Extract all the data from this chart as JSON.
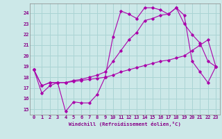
{
  "xlabel": "Windchill (Refroidissement éolien,°C)",
  "background_color": "#cce8e8",
  "grid_color": "#aad4d4",
  "line_color": "#aa00aa",
  "x_ticks": [
    0,
    1,
    2,
    3,
    4,
    5,
    6,
    7,
    8,
    9,
    10,
    11,
    12,
    13,
    14,
    15,
    16,
    17,
    18,
    19,
    20,
    21,
    22,
    23
  ],
  "y_ticks": [
    15,
    16,
    17,
    18,
    19,
    20,
    21,
    22,
    23,
    24
  ],
  "ylim": [
    14.5,
    24.9
  ],
  "xlim": [
    -0.5,
    23.5
  ],
  "line1": [
    18.7,
    16.5,
    17.2,
    17.5,
    14.8,
    15.7,
    15.6,
    15.6,
    16.4,
    18.0,
    21.8,
    24.2,
    23.9,
    23.5,
    24.5,
    24.5,
    24.3,
    23.9,
    24.5,
    23.0,
    22.0,
    21.2,
    19.5,
    19.0
  ],
  "line2": [
    18.7,
    17.2,
    17.5,
    17.5,
    17.5,
    17.6,
    17.7,
    17.8,
    17.9,
    18.0,
    18.2,
    18.5,
    18.7,
    18.9,
    19.1,
    19.3,
    19.5,
    19.6,
    19.8,
    20.0,
    20.5,
    21.0,
    21.5,
    19.0
  ],
  "line3": [
    18.7,
    17.2,
    17.5,
    17.5,
    17.5,
    17.7,
    17.8,
    18.0,
    18.2,
    18.5,
    19.5,
    20.5,
    21.5,
    22.2,
    23.3,
    23.5,
    23.8,
    23.9,
    24.5,
    23.8,
    19.5,
    18.5,
    17.5,
    19.0
  ]
}
